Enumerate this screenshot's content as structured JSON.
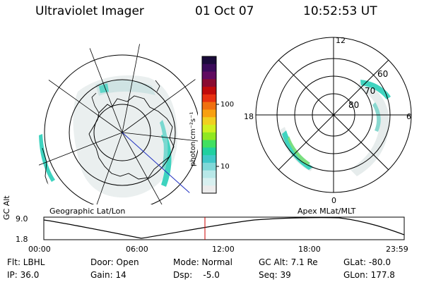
{
  "header": {
    "title": "Ultraviolet Imager",
    "date": "01 Oct 07",
    "time": "10:52:53 UT"
  },
  "geo_panel": {
    "label": "Geographic Lat/Lon"
  },
  "mag_panel": {
    "label": "Apex MLat/MLT",
    "mlt_labels": [
      "12",
      "18",
      "6",
      "0"
    ],
    "lat_labels": [
      "60",
      "70",
      "80"
    ]
  },
  "colorbar": {
    "unit": "photon cm⁻²s⁻¹",
    "tick_labels": [
      "100",
      "10"
    ],
    "colors": [
      "#1a0a3a",
      "#3a0a5a",
      "#600a60",
      "#8a0a30",
      "#c00a0a",
      "#e83010",
      "#f07010",
      "#f8a010",
      "#f0d020",
      "#d0f020",
      "#90e820",
      "#40e060",
      "#20d0a0",
      "#40c8c8",
      "#80d8d8",
      "#b8e8e8",
      "#d8f0f0",
      "#ececec"
    ]
  },
  "altitude_plot": {
    "ylabel": "GC Alt",
    "ytick_top": "9.0",
    "ytick_bottom": "1.8",
    "xtick_labels": [
      "00:00",
      "06:00",
      "12:00",
      "18:00",
      "23:59"
    ],
    "current_time_marker_color": "#cc0000"
  },
  "info": {
    "row1": {
      "filter": "Flt: LBHL",
      "door": "Door: Open",
      "mode": "Mode: Normal",
      "gc_alt": "GC Alt: 7.1 Re",
      "glat": "GLat: -80.0"
    },
    "row2": {
      "ip": "IP: 36.0",
      "gain": "Gain: 14",
      "dsp": "Dsp:    -5.0",
      "seq": "Seq: 39",
      "glon": "GLon: 177.8"
    }
  }
}
